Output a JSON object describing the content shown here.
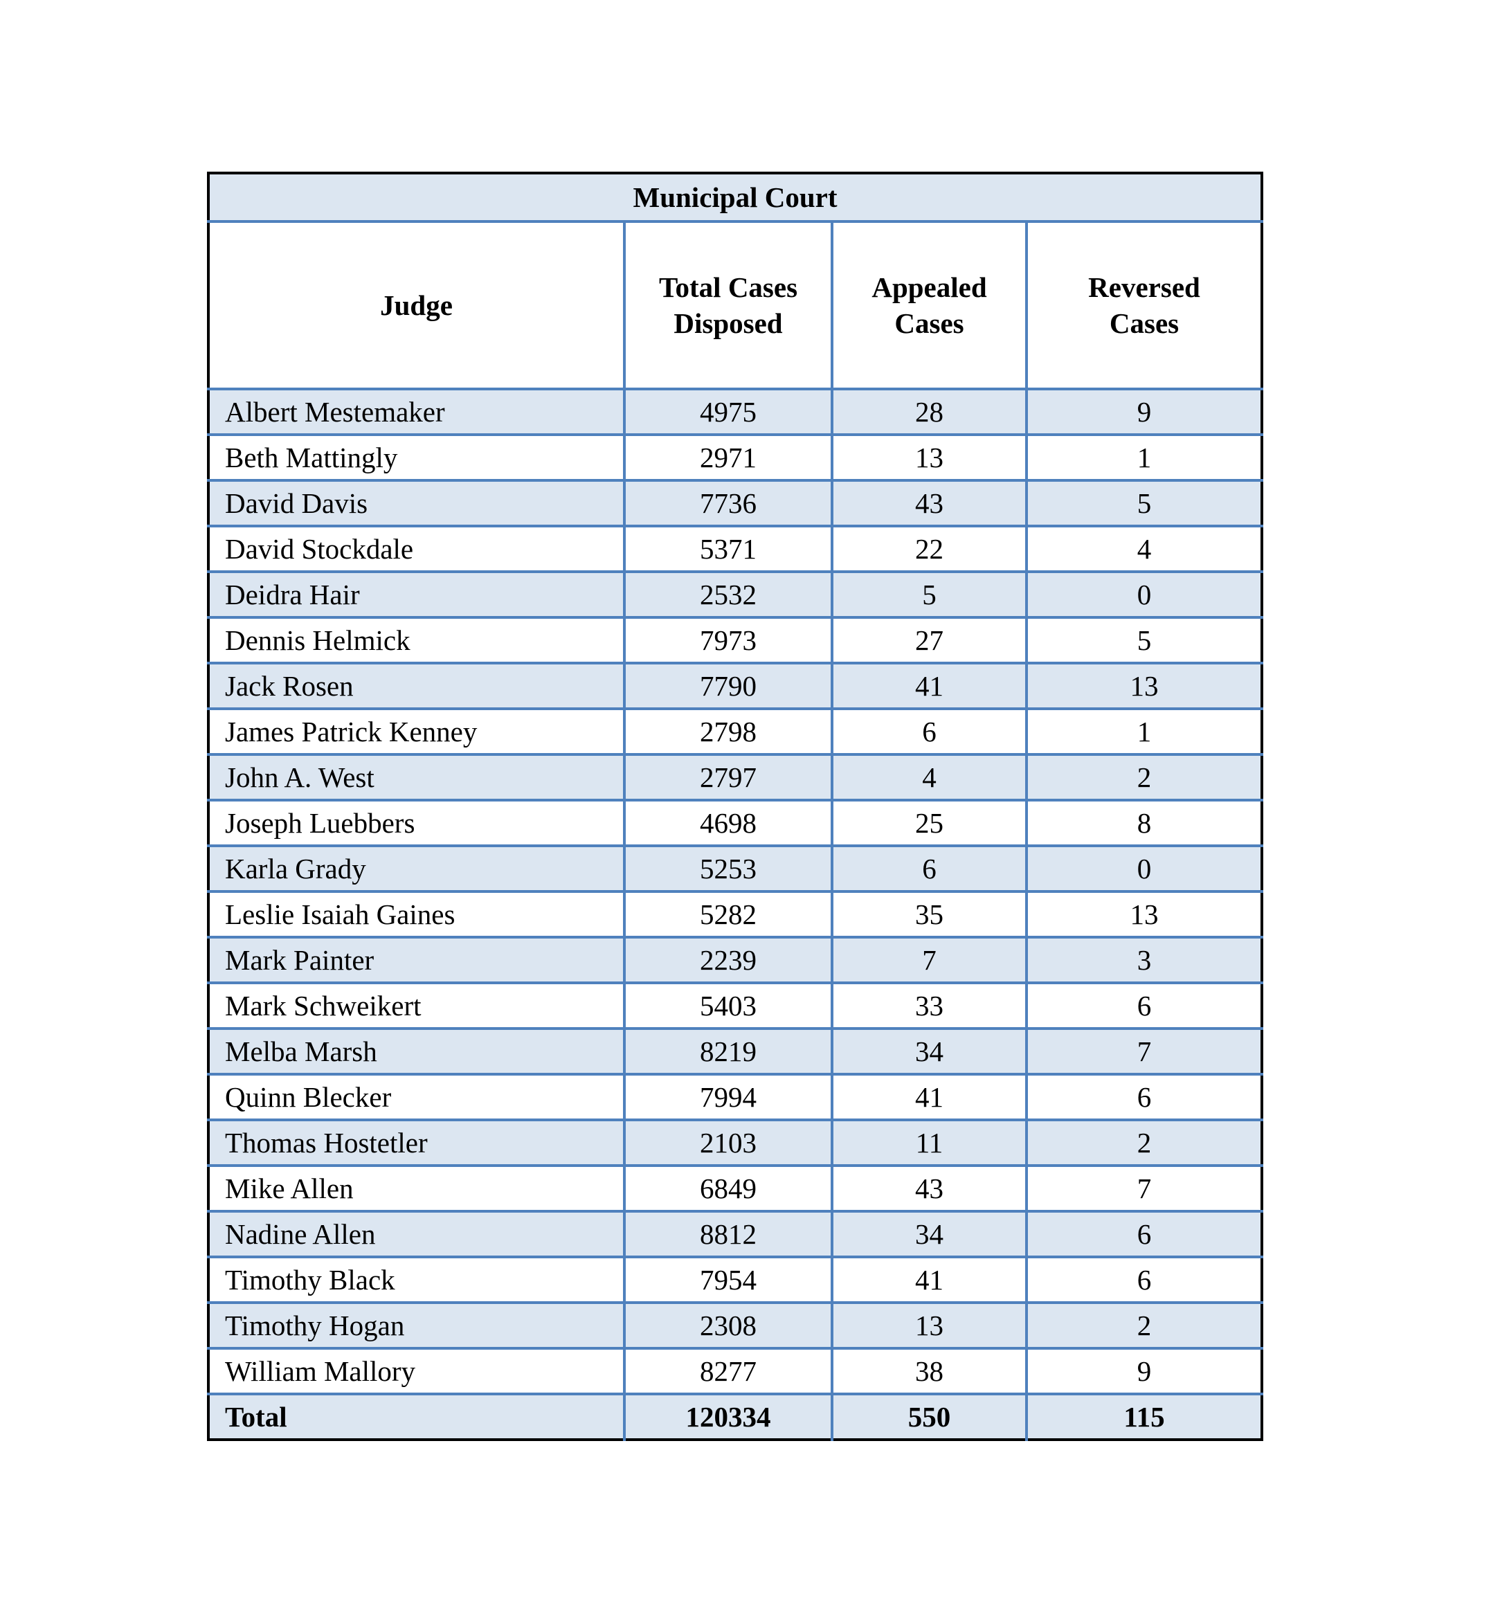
{
  "table": {
    "title": "Municipal Court",
    "headers": [
      "Judge",
      "Total Cases Disposed",
      "Appealed Cases",
      "Reversed Cases"
    ],
    "rows": [
      [
        "Albert Mestemaker",
        "4975",
        "28",
        "9"
      ],
      [
        "Beth Mattingly",
        "2971",
        "13",
        "1"
      ],
      [
        "David Davis",
        "7736",
        "43",
        "5"
      ],
      [
        "David Stockdale",
        "5371",
        "22",
        "4"
      ],
      [
        "Deidra Hair",
        "2532",
        "5",
        "0"
      ],
      [
        "Dennis Helmick",
        "7973",
        "27",
        "5"
      ],
      [
        "Jack Rosen",
        "7790",
        "41",
        "13"
      ],
      [
        "James Patrick Kenney",
        "2798",
        "6",
        "1"
      ],
      [
        "John A. West",
        "2797",
        "4",
        "2"
      ],
      [
        "Joseph Luebbers",
        "4698",
        "25",
        "8"
      ],
      [
        "Karla Grady",
        "5253",
        "6",
        "0"
      ],
      [
        "Leslie Isaiah Gaines",
        "5282",
        "35",
        "13"
      ],
      [
        "Mark Painter",
        "2239",
        "7",
        "3"
      ],
      [
        "Mark Schweikert",
        "5403",
        "33",
        "6"
      ],
      [
        "Melba Marsh",
        "8219",
        "34",
        "7"
      ],
      [
        "Quinn Blecker",
        "7994",
        "41",
        "6"
      ],
      [
        "Thomas Hostetler",
        "2103",
        "11",
        "2"
      ],
      [
        "Mike Allen",
        "6849",
        "43",
        "7"
      ],
      [
        "Nadine Allen",
        "8812",
        "34",
        "6"
      ],
      [
        "Timothy Black",
        "7954",
        "41",
        "6"
      ],
      [
        "Timothy Hogan",
        "2308",
        "13",
        "2"
      ],
      [
        "William Mallory",
        "8277",
        "38",
        "9"
      ]
    ],
    "total": [
      "Total",
      "120334",
      "550",
      "115"
    ]
  },
  "colors": {
    "band": "#dce6f1",
    "grid": "#4f81bd",
    "outline": "#000000"
  }
}
